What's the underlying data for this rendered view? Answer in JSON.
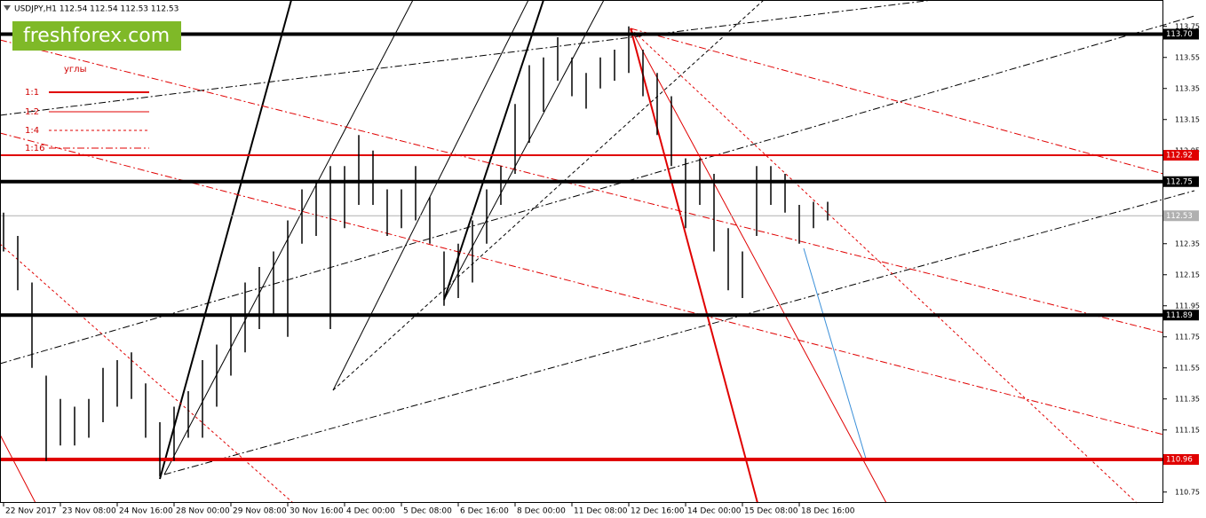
{
  "chart_data": {
    "type": "hlbar",
    "title": "USDJPY,H1  112.54 112.54 112.53 112.53",
    "logo": "freshforex.com",
    "legend_title": "углы",
    "legend": [
      {
        "label": "1:1",
        "style": "solid-thick"
      },
      {
        "label": "1:2",
        "style": "solid"
      },
      {
        "label": "1:4",
        "style": "dashed"
      },
      {
        "label": "1:16",
        "style": "dashdot"
      }
    ],
    "color": "#000000",
    "x": [
      0,
      8,
      16,
      24,
      32,
      40,
      48,
      56,
      64,
      72,
      80,
      88,
      96,
      104,
      112,
      120,
      128,
      136,
      144,
      152,
      160,
      168,
      176,
      184,
      192,
      200,
      208,
      216,
      224,
      232,
      240,
      248,
      256,
      264,
      272,
      280,
      288,
      296,
      304,
      312,
      320,
      328,
      336,
      344,
      352,
      360,
      368,
      376,
      384,
      392,
      400,
      408,
      416,
      424,
      432,
      440,
      448,
      456,
      464
    ],
    "highs": [
      112.55,
      112.4,
      112.1,
      111.5,
      111.35,
      111.3,
      111.35,
      111.55,
      111.6,
      111.65,
      111.45,
      111.2,
      111.3,
      111.4,
      111.6,
      111.7,
      111.9,
      112.1,
      112.2,
      112.3,
      112.5,
      112.7,
      112.75,
      112.85,
      112.85,
      113.05,
      112.95,
      112.7,
      112.7,
      112.85,
      112.65,
      112.3,
      112.35,
      112.5,
      112.7,
      112.85,
      113.25,
      113.5,
      113.55,
      113.68,
      113.55,
      113.45,
      113.55,
      113.6,
      113.75,
      113.6,
      113.45,
      113.3,
      112.9,
      112.9,
      112.8,
      112.45,
      112.3,
      112.85,
      112.85,
      112.8,
      112.6,
      112.62,
      112.62
    ],
    "lows": [
      112.3,
      112.05,
      111.55,
      110.95,
      111.05,
      111.05,
      111.1,
      111.2,
      111.3,
      111.35,
      111.1,
      110.85,
      110.95,
      111.1,
      111.1,
      111.3,
      111.5,
      111.65,
      111.8,
      111.9,
      111.75,
      112.35,
      112.4,
      111.8,
      112.45,
      112.6,
      112.6,
      112.4,
      112.45,
      112.5,
      112.35,
      111.95,
      112.0,
      112.1,
      112.35,
      112.6,
      112.8,
      113.0,
      113.2,
      113.4,
      113.3,
      113.22,
      113.35,
      113.4,
      113.45,
      113.3,
      113.05,
      112.85,
      112.45,
      112.6,
      112.3,
      112.05,
      112.0,
      112.4,
      112.6,
      112.55,
      112.35,
      112.45,
      112.5
    ],
    "xlim": [
      -2,
      653
    ],
    "ylim": [
      110.68,
      113.92
    ],
    "xticks": [
      {
        "value": 0,
        "label": "22 Nov 2017"
      },
      {
        "value": 32,
        "label": "23 Nov 08:00"
      },
      {
        "value": 64,
        "label": "24 Nov 16:00"
      },
      {
        "value": 96,
        "label": "28 Nov 00:00"
      },
      {
        "value": 128,
        "label": "29 Nov 08:00"
      },
      {
        "value": 160,
        "label": "30 Nov 16:00"
      },
      {
        "value": 192,
        "label": "4 Dec 00:00"
      },
      {
        "value": 224,
        "label": "5 Dec 08:00"
      },
      {
        "value": 256,
        "label": "6 Dec 16:00"
      },
      {
        "value": 288,
        "label": "8 Dec 00:00"
      },
      {
        "value": 320,
        "label": "11 Dec 08:00"
      },
      {
        "value": 352,
        "label": "12 Dec 16:00"
      },
      {
        "value": 384,
        "label": "14 Dec 00:00"
      },
      {
        "value": 416,
        "label": "15 Dec 08:00"
      },
      {
        "value": 448,
        "label": "18 Dec 16:00"
      }
    ],
    "yticks": [
      113.75,
      113.55,
      113.35,
      113.15,
      112.95,
      112.35,
      112.15,
      111.95,
      111.75,
      111.55,
      111.35,
      111.15,
      110.75
    ],
    "levels": [
      {
        "value": 113.7,
        "label": "113.70",
        "color": "#000000"
      },
      {
        "value": 112.92,
        "label": "112.92",
        "color": "#e00000"
      },
      {
        "value": 112.75,
        "label": "112.75",
        "color": "#000000"
      },
      {
        "value": 112.53,
        "label": "112.53",
        "color": "#b0b0b0"
      },
      {
        "value": 111.89,
        "label": "111.89",
        "color": "#000000"
      },
      {
        "value": 110.96,
        "label": "110.96",
        "color": "#e00000"
      }
    ]
  }
}
